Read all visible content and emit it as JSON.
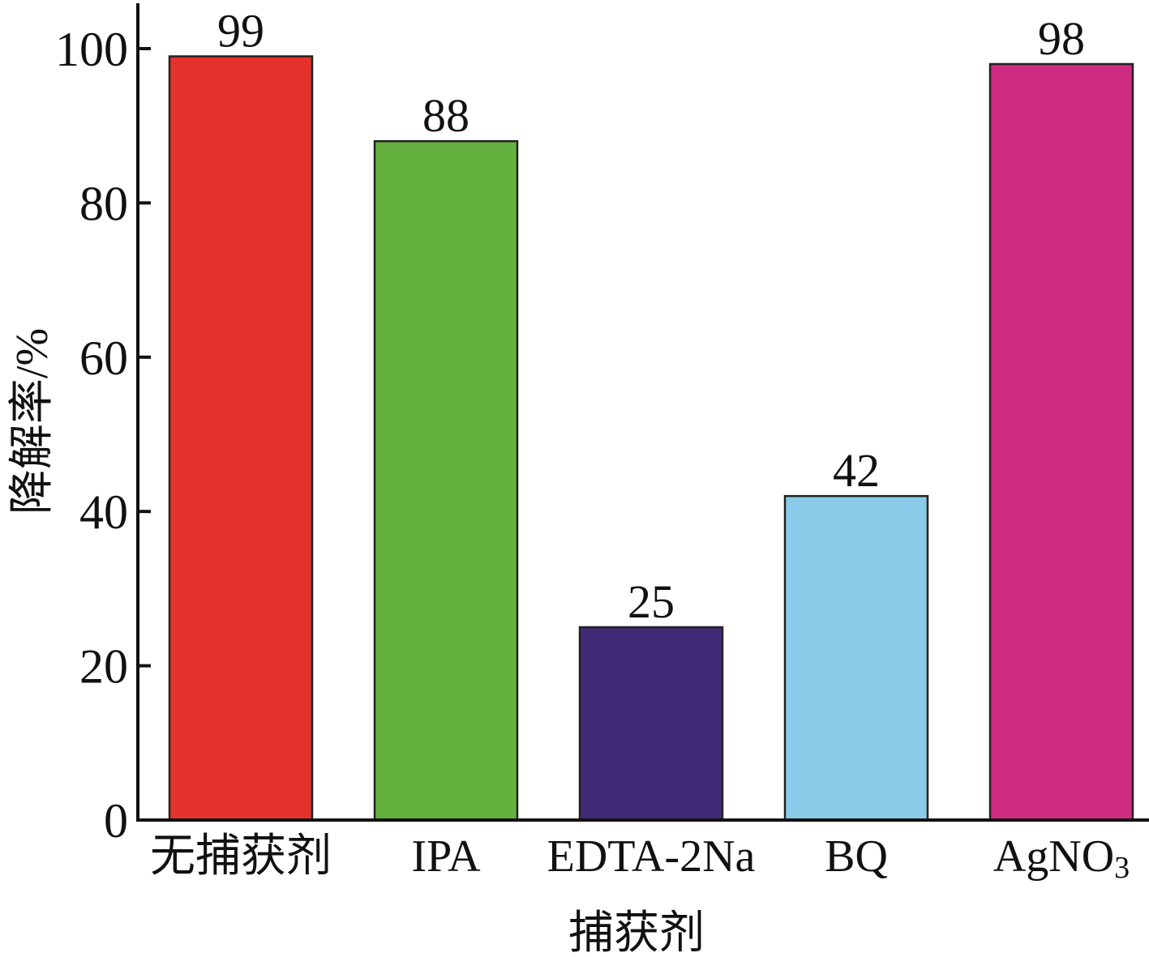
{
  "chart_data": {
    "type": "bar",
    "categories": [
      "无捕获剂",
      "IPA",
      "EDTA-2Na",
      "BQ",
      "AgNO3"
    ],
    "category_display": [
      {
        "main": "无捕获剂",
        "sub": ""
      },
      {
        "main": "IPA",
        "sub": ""
      },
      {
        "main": "EDTA-2Na",
        "sub": ""
      },
      {
        "main": "BQ",
        "sub": ""
      },
      {
        "main": "AgNO",
        "sub": "3"
      }
    ],
    "values": [
      99,
      88,
      25,
      42,
      98
    ],
    "value_labels": [
      "99",
      "88",
      "25",
      "42",
      "98"
    ],
    "colors": [
      "#e5322d",
      "#63b03e",
      "#402b77",
      "#89cbe8",
      "#cf2b81"
    ],
    "xlabel": "捕获剂",
    "ylabel": "降解率/%",
    "ylim": [
      0,
      100
    ],
    "yticks": [
      0,
      20,
      40,
      60,
      80,
      100
    ],
    "ytick_labels": [
      "0",
      "20",
      "40",
      "60",
      "80",
      "100"
    ],
    "grid": false,
    "legend": "none"
  }
}
